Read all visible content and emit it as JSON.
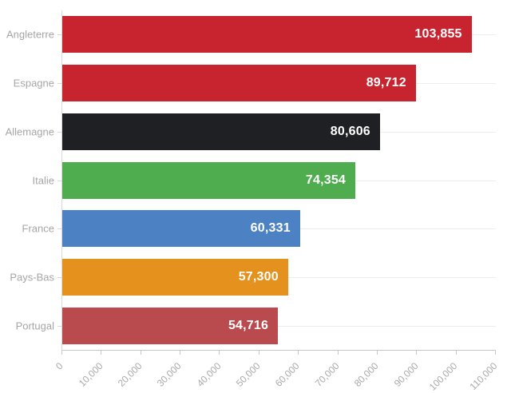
{
  "chart_data": {
    "type": "bar",
    "orientation": "horizontal",
    "title": "",
    "xlabel": "",
    "ylabel": "",
    "categories": [
      "Angleterre",
      "Espagne",
      "Allemagne",
      "Italie",
      "France",
      "Pays-Bas",
      "Portugal"
    ],
    "values": [
      103855,
      89712,
      80606,
      74354,
      60331,
      57300,
      54716
    ],
    "value_labels": [
      "103,855",
      "89,712",
      "80,606",
      "74,354",
      "60,331",
      "57,300",
      "54,716"
    ],
    "bar_colors": [
      "#c8242f",
      "#c8242f",
      "#1f2023",
      "#4fad4f",
      "#4c82c3",
      "#e5911d",
      "#b94a4e"
    ],
    "xlim": [
      0,
      110000
    ],
    "x_ticks": [
      0,
      10000,
      20000,
      30000,
      40000,
      50000,
      60000,
      70000,
      80000,
      90000,
      100000,
      110000
    ],
    "x_tick_labels": [
      "0",
      "10,000",
      "20,000",
      "30,000",
      "40,000",
      "50,000",
      "60,000",
      "70,000",
      "80,000",
      "90,000",
      "100,000",
      "110,000"
    ],
    "legend": "none",
    "grid": "horizontal category gridlines only",
    "style": {
      "value_label_color": "#ffffff",
      "category_label_color": "#a6a6a6",
      "tick_label_color": "#a9a9a9",
      "axis_line_color": "#c6c6c6",
      "gridline_color": "#ededed",
      "background_color": "#ffffff"
    }
  }
}
